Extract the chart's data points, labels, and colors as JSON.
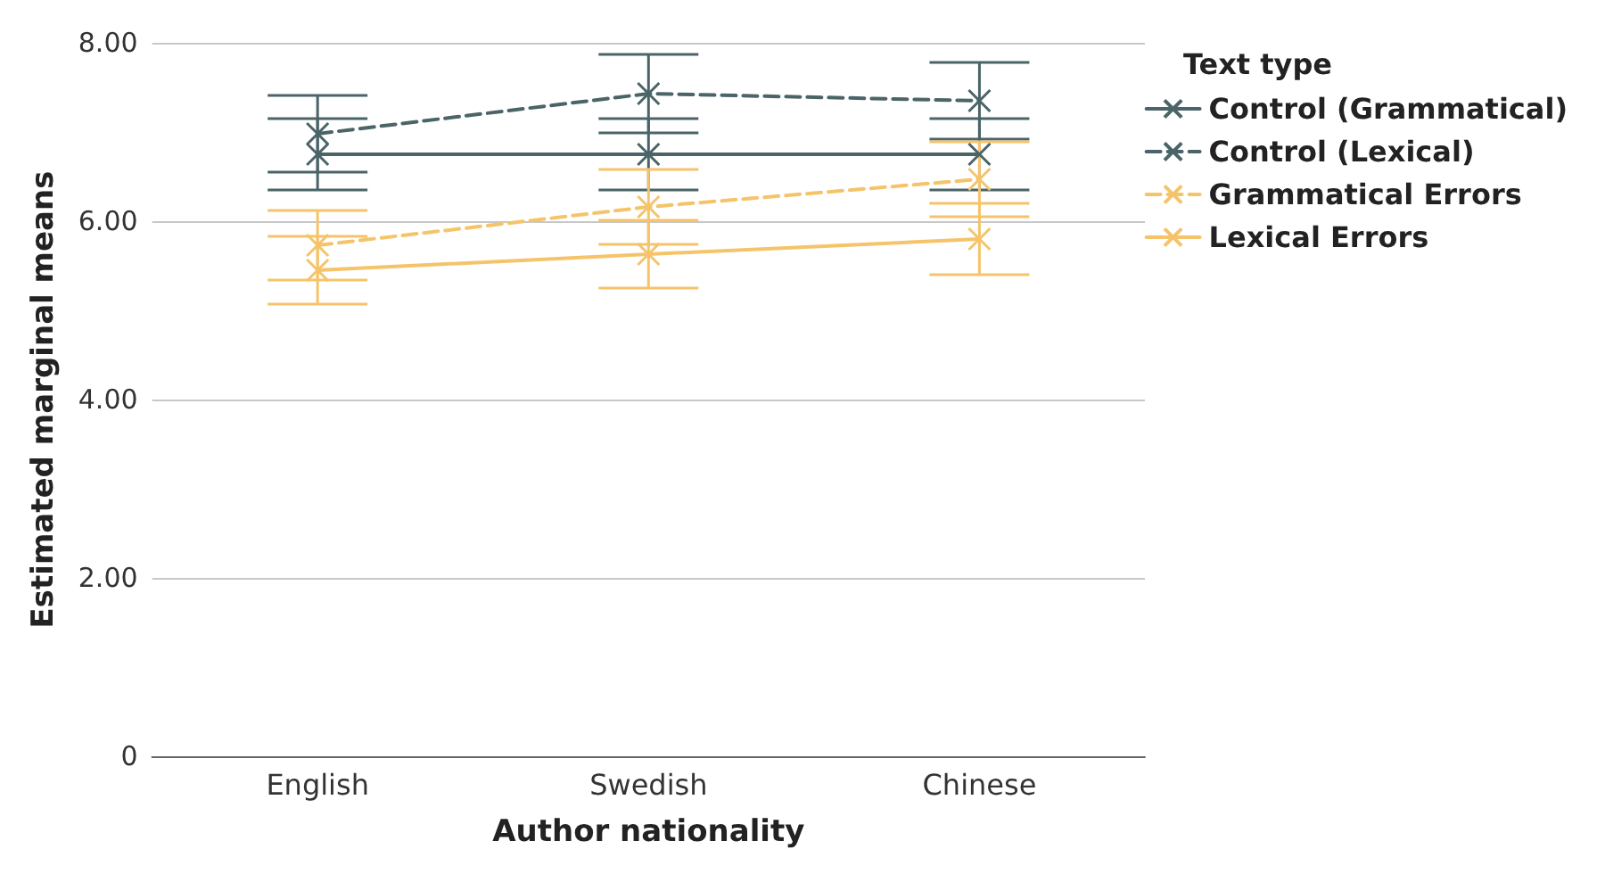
{
  "chart_data": {
    "type": "line",
    "xlabel": "Author nationality",
    "ylabel": "Estimated marginal means",
    "legend_title": "Text type",
    "categories": [
      "English",
      "Swedish",
      "Chinese"
    ],
    "series": [
      {
        "name": "Control (Grammatical)",
        "color": "#4a6468",
        "line_style": "solid",
        "values": [
          6.75,
          6.75,
          6.75
        ],
        "errors": [
          0.4,
          0.4,
          0.4
        ]
      },
      {
        "name": "Control (Lexical)",
        "color": "#4a6468",
        "line_style": "dashed",
        "values": [
          6.98,
          7.43,
          7.35
        ],
        "errors": [
          0.43,
          0.44,
          0.43
        ]
      },
      {
        "name": "Grammatical Errors",
        "color": "#f5c46a",
        "line_style": "dashed",
        "values": [
          5.73,
          6.16,
          6.47
        ],
        "errors": [
          0.39,
          0.42,
          0.42
        ]
      },
      {
        "name": "Lexical Errors",
        "color": "#f5c46a",
        "line_style": "solid",
        "values": [
          5.45,
          5.63,
          5.8
        ],
        "errors": [
          0.38,
          0.38,
          0.4
        ]
      }
    ],
    "ylim": [
      0,
      8
    ],
    "yticks": [
      {
        "value": 0,
        "label": "0"
      },
      {
        "value": 2,
        "label": "2.00"
      },
      {
        "value": 4,
        "label": "4.00"
      },
      {
        "value": 6,
        "label": "6.00"
      },
      {
        "value": 8,
        "label": "8.00"
      }
    ],
    "grid": "y",
    "legend": "top right",
    "marker": "cross"
  }
}
